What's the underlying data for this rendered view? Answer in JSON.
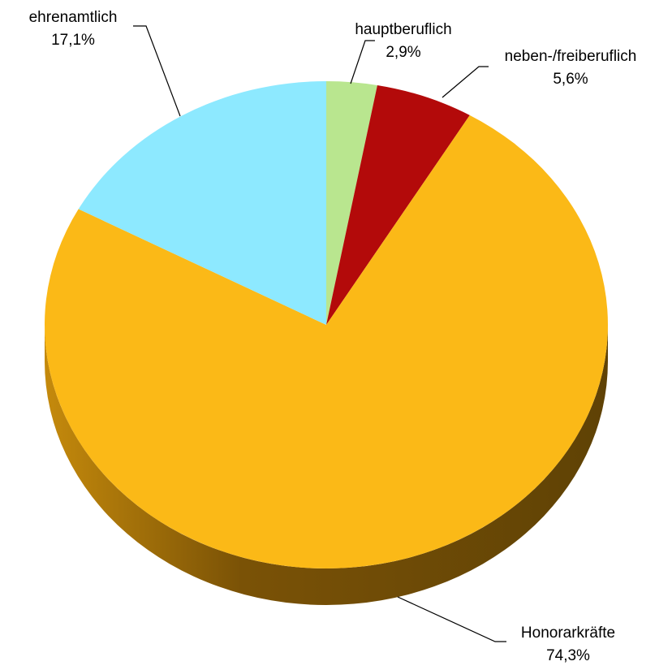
{
  "chart_data": {
    "type": "pie",
    "categories": [
      "hauptberuflich",
      "neben-/freiberuflich",
      "Honorarkräfte",
      "ehrenamtlich"
    ],
    "values": [
      2.9,
      5.6,
      74.3,
      17.1
    ],
    "value_labels": [
      "2,9%",
      "5,6%",
      "74,3%",
      "17,1%"
    ],
    "colors": [
      "#b9e68f",
      "#b30a0a",
      "#fbb917",
      "#8de9ff"
    ]
  }
}
